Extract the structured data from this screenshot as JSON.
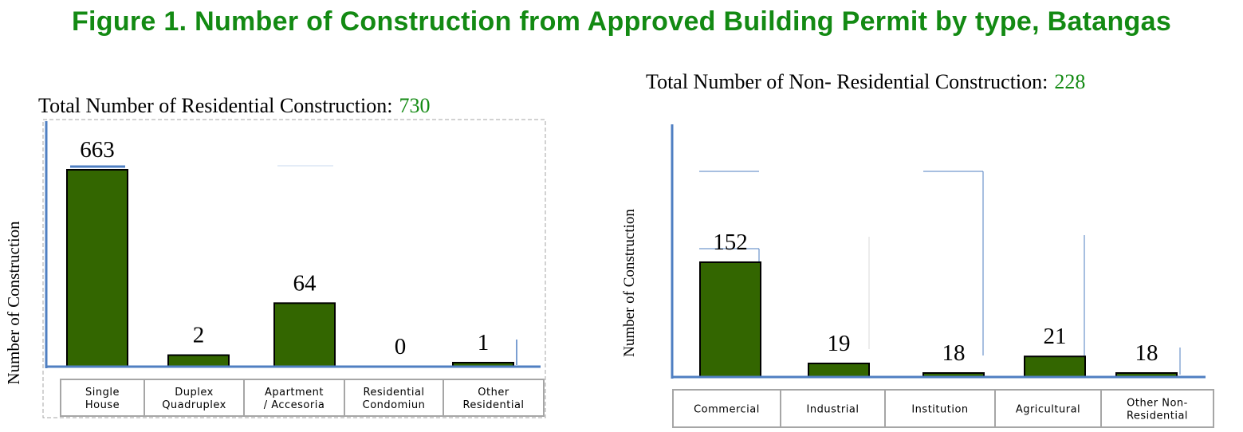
{
  "title": "Figure 1. Number of Construction from Approved Building Permit by type, Batangas",
  "colors": {
    "title": "#138a13",
    "total_value": "#138a13",
    "bar_fill": "#336600",
    "bar_stroke": "#000000",
    "axis": "#4f7fc2",
    "category_box": "#a6a6a6"
  },
  "chart_data": [
    {
      "type": "bar",
      "id": "residential",
      "header_label": "Total Number of Residential Construction:",
      "header_total": "730",
      "ylabel": "Number of Construction",
      "categories": [
        [
          "Single",
          "House"
        ],
        [
          "Duplex",
          "Quadruplex"
        ],
        [
          "Apartment",
          "/ Accesoria"
        ],
        [
          "Residential",
          "Condomiun"
        ],
        [
          "Other",
          "Residential"
        ]
      ],
      "values": [
        663,
        2,
        64,
        0,
        1
      ],
      "value_labels": [
        "663",
        "2",
        "64",
        "0",
        "1"
      ]
    },
    {
      "type": "bar",
      "id": "non_residential",
      "header_label": "Total Number of Non- Residential Construction:",
      "header_total": "228",
      "ylabel": "Number of Construction",
      "categories": [
        [
          "Commercial"
        ],
        [
          "Industrial"
        ],
        [
          "Institution"
        ],
        [
          "Agricultural"
        ],
        [
          "Other Non-",
          "Residential"
        ]
      ],
      "values": [
        152,
        19,
        18,
        21,
        18
      ],
      "value_labels": [
        "152",
        "19",
        "18",
        "21",
        "18"
      ]
    }
  ]
}
